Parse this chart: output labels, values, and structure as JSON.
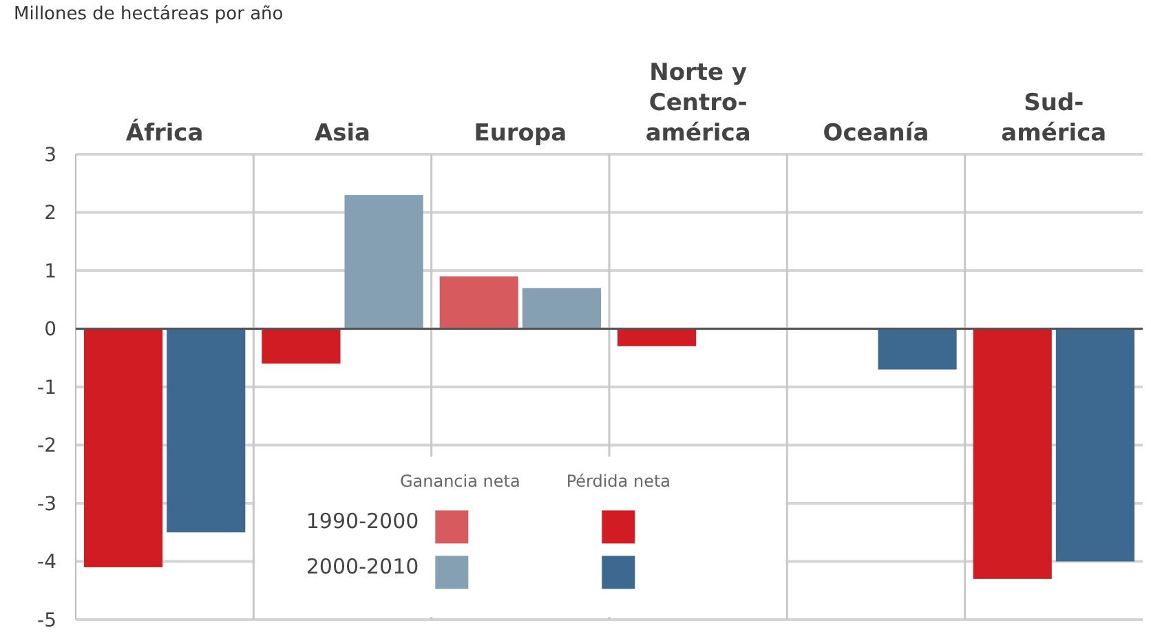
{
  "chart_data": {
    "type": "bar",
    "title": "Millones de hectáreas por año",
    "categories": [
      "África",
      "Asia",
      "Europa",
      "Norte y\nCentro-\namérica",
      "Oceanía",
      "Sud-\namérica"
    ],
    "series": [
      {
        "name": "1990-2000",
        "color": "#d65a5e",
        "colors": [
          "#d21c24",
          "#d21c24",
          "#d65a5e",
          "#d21c24",
          "#d21c24",
          "#d21c24"
        ],
        "values": [
          -4.1,
          -0.6,
          0.9,
          -0.3,
          0,
          -4.3
        ]
      },
      {
        "name": "2000-2010",
        "color": "#86a0b3",
        "colors": [
          "#3d6890",
          "#86a0b3",
          "#86a0b3",
          "#3d6890",
          "#3d6890",
          "#3d6890"
        ],
        "values": [
          -3.5,
          2.3,
          0.7,
          0,
          -0.7,
          -4.0
        ]
      }
    ],
    "annotations": [
      "Ganancia neta",
      "Pérdida neta"
    ],
    "ylim": [
      -5,
      3
    ],
    "yticks": [
      3,
      2,
      1,
      0,
      -1,
      -2,
      -3,
      -4,
      -5
    ],
    "grid": true,
    "legend": "bottom"
  }
}
